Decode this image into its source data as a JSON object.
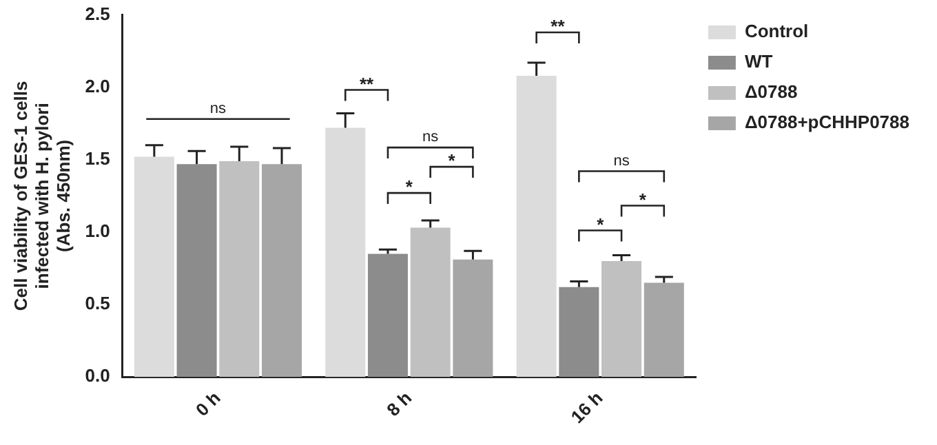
{
  "chart_data": {
    "type": "bar",
    "ylabel": "Cell viability of GES-1 cells infected with H. pylori (Abs. 450nm)",
    "categories": [
      "0 h",
      "8 h",
      "16 h"
    ],
    "series": [
      {
        "name": "Control",
        "color": "#dcdcdc",
        "values": [
          1.52,
          1.72,
          2.08
        ],
        "errors": [
          [
            1.52,
            1.6
          ],
          [
            1.72,
            1.82
          ],
          [
            2.08,
            2.17
          ]
        ]
      },
      {
        "name": "WT",
        "color": "#8c8c8c",
        "values": [
          1.47,
          0.85,
          0.62
        ],
        "errors": [
          [
            1.47,
            1.56
          ],
          [
            0.85,
            0.88
          ],
          [
            0.62,
            0.66
          ]
        ]
      },
      {
        "name": "Δ0788",
        "color": "#c0c0c0",
        "values": [
          1.49,
          1.03,
          0.8
        ],
        "errors": [
          [
            1.49,
            1.59
          ],
          [
            1.03,
            1.08
          ],
          [
            0.8,
            0.84
          ]
        ]
      },
      {
        "name": "Δ0788+pCHHP0788",
        "color": "#a6a6a6",
        "values": [
          1.47,
          0.81,
          0.65
        ],
        "errors": [
          [
            1.47,
            1.58
          ],
          [
            0.81,
            0.87
          ],
          [
            0.65,
            0.69
          ]
        ]
      }
    ],
    "ylim": [
      0,
      2.5
    ],
    "yticks": [
      {
        "value": 0,
        "label": "0.0"
      },
      {
        "value": 0.5,
        "label": "0.5"
      },
      {
        "value": 1,
        "label": "1.0"
      },
      {
        "value": 1.5,
        "label": "1.5"
      },
      {
        "value": 2,
        "label": "2.0"
      },
      {
        "value": 2.5,
        "label": "2.5"
      }
    ],
    "legend": "right",
    "grid": false,
    "annotations": [
      "ns",
      "**",
      "ns",
      "*",
      "*",
      "**",
      "ns",
      "*",
      "*"
    ]
  }
}
